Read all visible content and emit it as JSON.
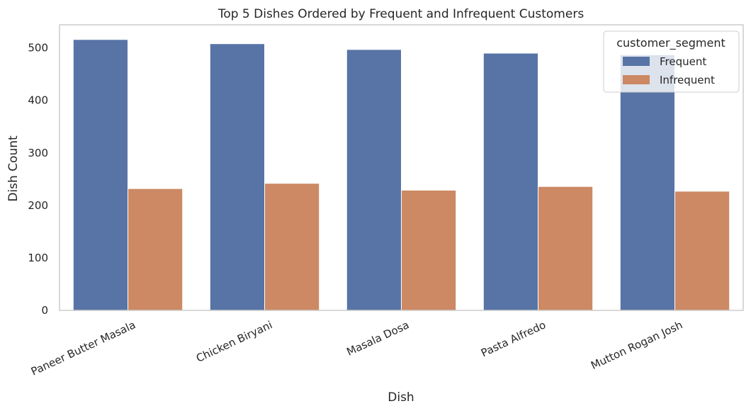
{
  "chart_data": {
    "type": "bar",
    "title": "Top 5 Dishes Ordered by Frequent and Infrequent Customers",
    "xlabel": "Dish",
    "ylabel": "Dish Count",
    "categories": [
      "Paneer Butter Masala",
      "Chicken Biryani",
      "Masala Dosa",
      "Pasta Alfredo",
      "Mutton Rogan Josh"
    ],
    "series": [
      {
        "name": "Frequent",
        "values": [
          516,
          508,
          497,
          490,
          487
        ],
        "color": "#5874a6"
      },
      {
        "name": "Infrequent",
        "values": [
          232,
          242,
          229,
          236,
          227
        ],
        "color": "#cc8963"
      }
    ],
    "ylim": [
      0,
      544
    ],
    "yticks": [
      "0",
      "100",
      "200",
      "300",
      "400",
      "500"
    ],
    "grid": false,
    "legend": {
      "title": "customer_segment",
      "placement": "top-right"
    }
  }
}
